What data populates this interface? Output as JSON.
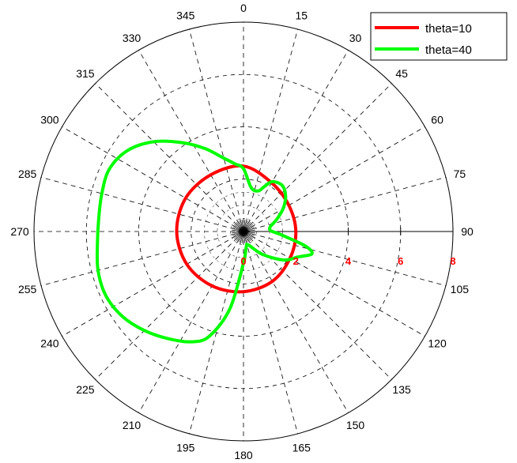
{
  "chart_data": {
    "type": "polar-line",
    "angular_axis": {
      "direction": "clockwise",
      "zero_at": "top",
      "ticks_deg": [
        0,
        15,
        30,
        45,
        60,
        75,
        90,
        105,
        120,
        135,
        150,
        165,
        180,
        195,
        210,
        225,
        240,
        255,
        270,
        285,
        300,
        315,
        330,
        345
      ],
      "tick_labels": [
        "0",
        "15",
        "30",
        "45",
        "60",
        "75",
        "90",
        "105",
        "120",
        "135",
        "150",
        "165",
        "180",
        "195",
        "210",
        "225",
        "240",
        "255",
        "270",
        "285",
        "300",
        "315",
        "330",
        "345"
      ]
    },
    "radial_axis": {
      "range": [
        0,
        8
      ],
      "ticks": [
        0,
        2,
        4,
        6,
        8
      ],
      "tick_labels": [
        "0",
        "2",
        "4",
        "6",
        "8"
      ],
      "tick_label_color": "#ff0000"
    },
    "grid": true,
    "legend_position": "top-right",
    "series": [
      {
        "name": "theta=10",
        "color": "#ff0000",
        "points": [
          [
            0,
            2.5
          ],
          [
            30,
            2.15
          ],
          [
            60,
            2.0
          ],
          [
            90,
            2.0
          ],
          [
            120,
            2.05
          ],
          [
            150,
            2.2
          ],
          [
            180,
            2.3
          ],
          [
            210,
            2.4
          ],
          [
            240,
            2.5
          ],
          [
            270,
            2.55
          ],
          [
            300,
            2.55
          ],
          [
            330,
            2.5
          ],
          [
            360,
            2.5
          ]
        ]
      },
      {
        "name": "theta=40",
        "color": "#00ff00",
        "points": [
          [
            0,
            2.4
          ],
          [
            10,
            1.7
          ],
          [
            20,
            1.65
          ],
          [
            25,
            1.9
          ],
          [
            30,
            2.2
          ],
          [
            40,
            2.3
          ],
          [
            50,
            2.1
          ],
          [
            60,
            1.75
          ],
          [
            70,
            1.35
          ],
          [
            85,
            1.0
          ],
          [
            95,
            1.45
          ],
          [
            103,
            2.4
          ],
          [
            108,
            2.75
          ],
          [
            115,
            2.3
          ],
          [
            125,
            1.9
          ],
          [
            140,
            1.15
          ],
          [
            160,
            0.55
          ],
          [
            170,
            0.6
          ],
          [
            180,
            1.2
          ],
          [
            190,
            3.0
          ],
          [
            198,
            4.2
          ],
          [
            205,
            4.65
          ],
          [
            215,
            5.0
          ],
          [
            225,
            5.35
          ],
          [
            235,
            5.65
          ],
          [
            245,
            5.8
          ],
          [
            255,
            5.75
          ],
          [
            265,
            5.6
          ],
          [
            275,
            5.55
          ],
          [
            285,
            5.6
          ],
          [
            295,
            5.65
          ],
          [
            305,
            5.4
          ],
          [
            315,
            4.85
          ],
          [
            325,
            4.15
          ],
          [
            335,
            3.5
          ],
          [
            345,
            2.9
          ],
          [
            353,
            2.6
          ],
          [
            360,
            2.4
          ]
        ]
      }
    ]
  }
}
